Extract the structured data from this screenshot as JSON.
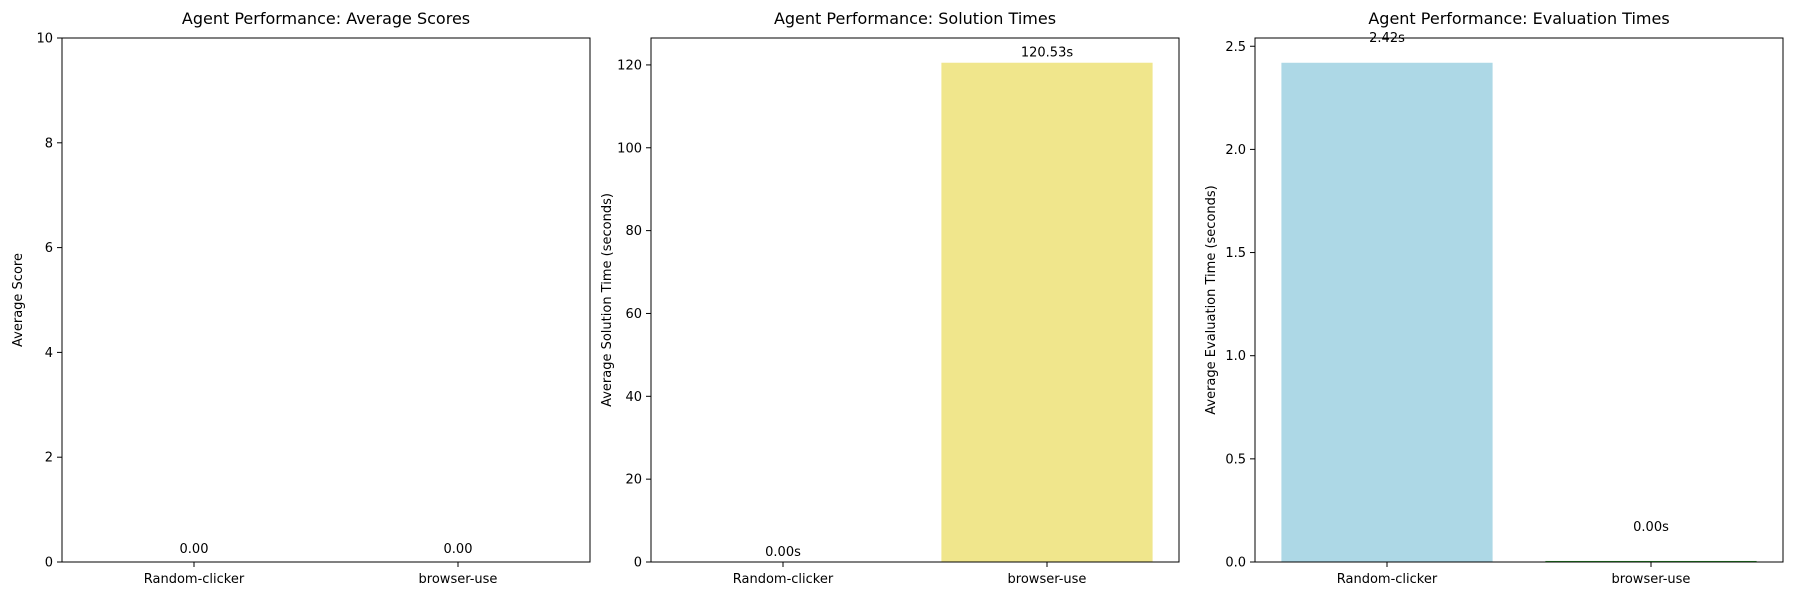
{
  "chart_data": [
    {
      "type": "bar",
      "title": "Agent Performance: Average Scores",
      "xlabel": "",
      "ylabel": "Average Score",
      "categories": [
        "Random-clicker",
        "browser-use"
      ],
      "values": [
        0.0,
        0.0
      ],
      "data_labels": [
        "0.00",
        "0.00"
      ],
      "bar_colors": [
        "#add8e6",
        "#90ee90"
      ],
      "ylim": [
        0,
        10
      ],
      "yticks": [
        0,
        2,
        4,
        6,
        8,
        10
      ],
      "ytick_labels": [
        "0",
        "2",
        "4",
        "6",
        "8",
        "10"
      ],
      "grid": false
    },
    {
      "type": "bar",
      "title": "Agent Performance: Solution Times",
      "xlabel": "",
      "ylabel": "Average Solution Time (seconds)",
      "categories": [
        "Random-clicker",
        "browser-use"
      ],
      "values": [
        0.0,
        120.53
      ],
      "data_labels": [
        "0.00s",
        "120.53s"
      ],
      "bar_colors": [
        "#add8e6",
        "#f0e68c"
      ],
      "ylim": [
        0,
        126.5
      ],
      "yticks": [
        0,
        20,
        40,
        60,
        80,
        100,
        120
      ],
      "ytick_labels": [
        "0",
        "20",
        "40",
        "60",
        "80",
        "100",
        "120"
      ],
      "grid": false
    },
    {
      "type": "bar",
      "title": "Agent Performance: Evaluation Times",
      "xlabel": "",
      "ylabel": "Average Evaluation Time (seconds)",
      "categories": [
        "Random-clicker",
        "browser-use"
      ],
      "values": [
        2.42,
        0.005
      ],
      "data_labels": [
        "2.42s",
        "0.00s"
      ],
      "bar_colors": [
        "#add8e6",
        "#2ca02c"
      ],
      "ylim": [
        0,
        2.54
      ],
      "yticks": [
        0.0,
        0.5,
        1.0,
        1.5,
        2.0,
        2.5
      ],
      "ytick_labels": [
        "0.0",
        "0.5",
        "1.0",
        "1.5",
        "2.0",
        "2.5"
      ],
      "grid": false
    }
  ]
}
